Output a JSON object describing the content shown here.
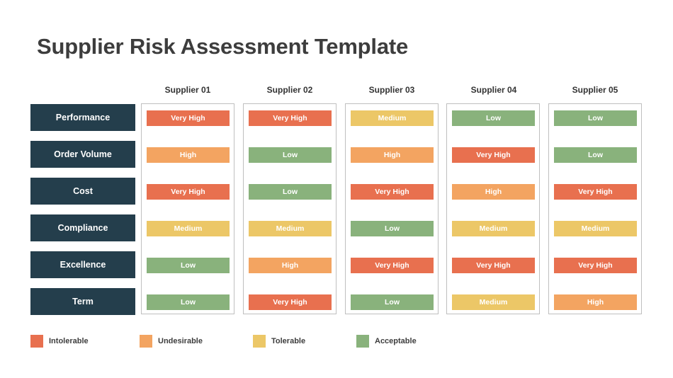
{
  "title": "Supplier Risk Assessment Template",
  "colors": {
    "intolerable": "#e8704f",
    "undesirable": "#f3a461",
    "tolerable": "#ecc767",
    "acceptable": "#89b27c",
    "criteria_bg": "#243e4c"
  },
  "criteria": [
    "Performance",
    "Order Volume",
    "Cost",
    "Compliance",
    "Excellence",
    "Term"
  ],
  "suppliers": [
    {
      "name": "Supplier 01",
      "ratings": [
        "Very High",
        "High",
        "Very High",
        "Medium",
        "Low",
        "Low"
      ]
    },
    {
      "name": "Supplier 02",
      "ratings": [
        "Very High",
        "Low",
        "Low",
        "Medium",
        "High",
        "Very High"
      ]
    },
    {
      "name": "Supplier 03",
      "ratings": [
        "Medium",
        "High",
        "Very High",
        "Low",
        "Very High",
        "Low"
      ]
    },
    {
      "name": "Supplier 04",
      "ratings": [
        "Low",
        "Very High",
        "High",
        "Medium",
        "Very High",
        "Medium"
      ]
    },
    {
      "name": "Supplier 05",
      "ratings": [
        "Low",
        "Low",
        "Very High",
        "Medium",
        "Very High",
        "High"
      ]
    }
  ],
  "legend": [
    {
      "label": "Intolerable",
      "color": "#e8704f"
    },
    {
      "label": "Undesirable",
      "color": "#f3a461"
    },
    {
      "label": "Tolerable",
      "color": "#ecc767"
    },
    {
      "label": "Acceptable",
      "color": "#89b27c"
    }
  ]
}
